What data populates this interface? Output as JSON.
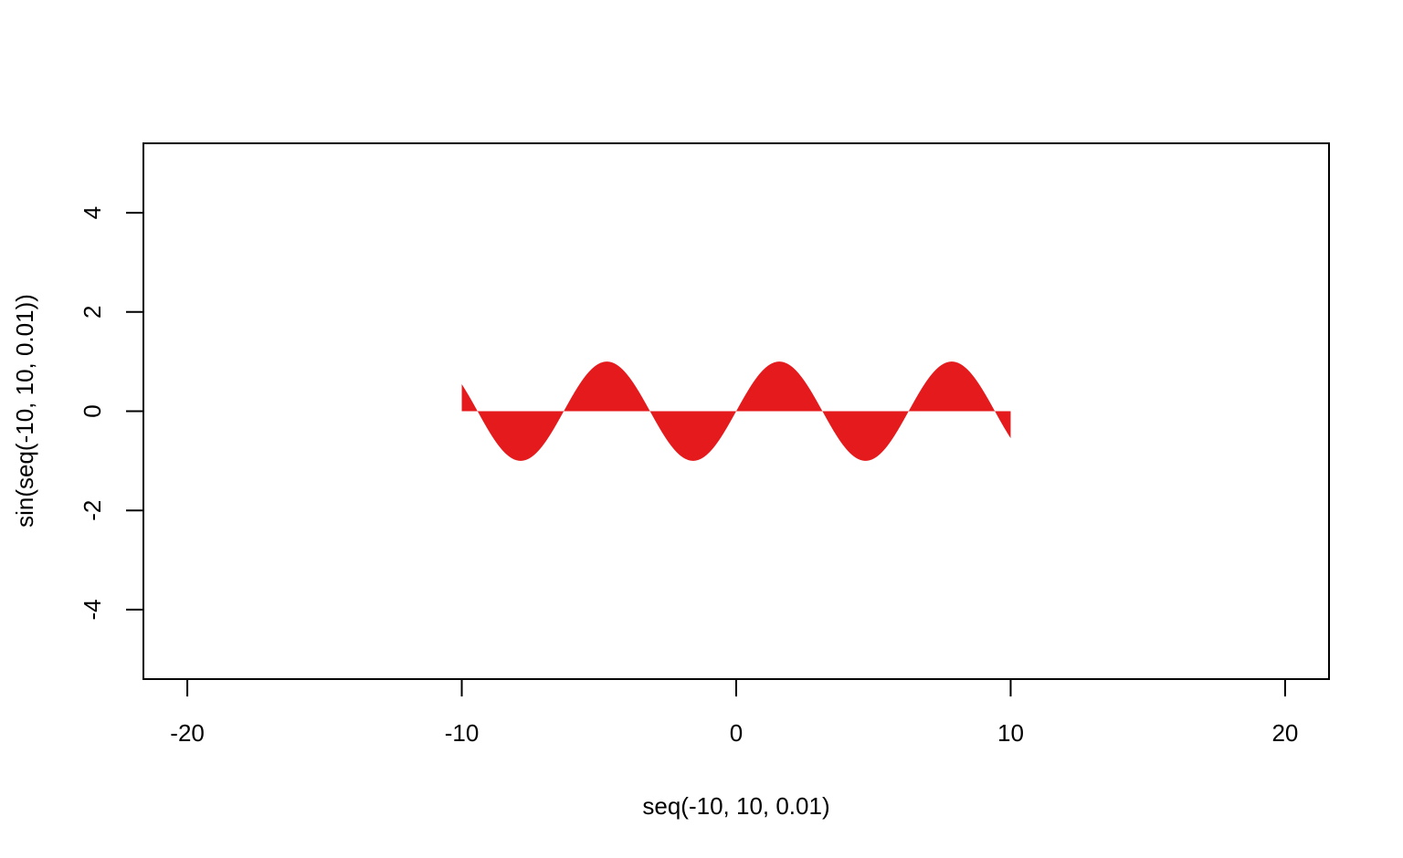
{
  "chart_data": {
    "type": "area",
    "title": "",
    "xlabel": "seq(-10, 10, 0.01)",
    "ylabel": "sin(seq(-10, 10, 0.01))",
    "xlim": [
      -21.6,
      21.6
    ],
    "ylim": [
      -5.4,
      5.4
    ],
    "x_ticks": [
      -20,
      -10,
      0,
      10,
      20
    ],
    "x_tick_labels": [
      "-20",
      "-10",
      "0",
      "10",
      "20"
    ],
    "y_ticks": [
      -4,
      -2,
      0,
      2,
      4
    ],
    "y_tick_labels": [
      "-4",
      "-2",
      "0",
      "2",
      "4"
    ],
    "grid": false,
    "legend": "none",
    "series": [
      {
        "function": "sin",
        "x_from": -10,
        "x_to": 10,
        "x_step": 0.01,
        "baseline": 0,
        "fill_color": "#e41a1c"
      }
    ]
  }
}
